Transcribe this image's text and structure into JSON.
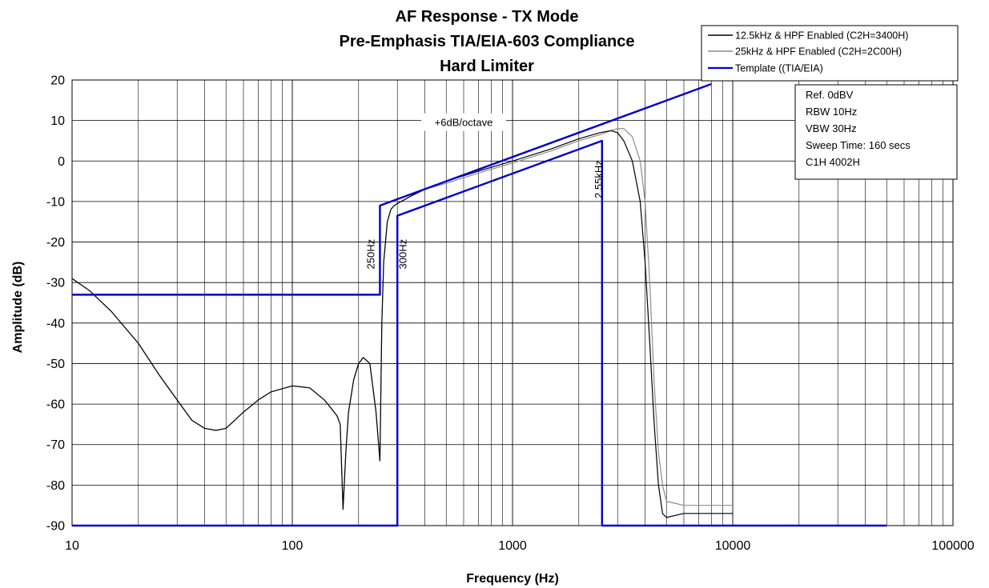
{
  "chart_data": {
    "type": "line",
    "title_lines": [
      "AF Response - TX Mode",
      "Pre-Emphasis TIA/EIA-603 Compliance",
      "Hard Limiter"
    ],
    "xlabel": "Frequency (Hz)",
    "ylabel": "Amplitude (dB)",
    "xscale": "log",
    "xlim": [
      10,
      100000
    ],
    "ylim": [
      -90,
      20
    ],
    "x_ticks": [
      10,
      100,
      1000,
      10000,
      100000
    ],
    "x_tick_labels": [
      "10",
      "100",
      "1000",
      "10000",
      "100000"
    ],
    "y_ticks": [
      20,
      10,
      0,
      -10,
      -20,
      -30,
      -40,
      -50,
      -60,
      -70,
      -80,
      -90
    ],
    "y_tick_labels": [
      "20",
      "10",
      "0",
      "-10",
      "-20",
      "-30",
      "-40",
      "-50",
      "-60",
      "-70",
      "-80",
      "-90"
    ],
    "grid": true,
    "legend_position": "top-right",
    "series": [
      {
        "name": "12.5kHz & HPF Enabled (C2H=3400H)",
        "color": "#000000",
        "x": [
          10,
          12,
          15,
          20,
          25,
          30,
          35,
          40,
          45,
          50,
          60,
          70,
          80,
          100,
          120,
          140,
          155,
          160,
          165,
          170,
          175,
          180,
          190,
          200,
          210,
          225,
          240,
          250,
          255,
          260,
          270,
          280,
          290,
          300,
          350,
          400,
          500,
          700,
          1000,
          1500,
          2000,
          2500,
          2800,
          3000,
          3200,
          3500,
          3800,
          4000,
          4200,
          4400,
          4600,
          4800,
          5000,
          6000,
          7000,
          8000,
          9000,
          10000
        ],
        "y": [
          -29,
          -32,
          -37,
          -45,
          -53,
          -59,
          -64,
          -66,
          -66.5,
          -66,
          -62,
          -59,
          -57,
          -55.5,
          -56,
          -59,
          -62,
          -63,
          -65,
          -86,
          -72,
          -62,
          -54,
          -50,
          -48.5,
          -50,
          -62,
          -74,
          -40,
          -25,
          -15,
          -12,
          -11,
          -10.5,
          -8.5,
          -7,
          -5,
          -2.5,
          0,
          3,
          5.5,
          7,
          7.5,
          7,
          5,
          0,
          -10,
          -25,
          -45,
          -65,
          -80,
          -87,
          -88,
          -87,
          -87,
          -87,
          -87,
          -87
        ]
      },
      {
        "name": "25kHz & HPF Enabled (C2H=2C00H)",
        "color": "#8c8c8c",
        "x": [
          10,
          12,
          15,
          20,
          25,
          30,
          35,
          40,
          45,
          50,
          60,
          70,
          80,
          100,
          120,
          140,
          155,
          160,
          165,
          170,
          175,
          180,
          190,
          200,
          210,
          225,
          240,
          250,
          255,
          260,
          270,
          280,
          290,
          300,
          350,
          400,
          500,
          700,
          1000,
          1500,
          2000,
          2500,
          2800,
          3000,
          3200,
          3500,
          3800,
          4000,
          4200,
          4400,
          4600,
          4800,
          5000,
          6000,
          7000,
          8000,
          9000,
          10000
        ],
        "y": [
          -29,
          -32,
          -37,
          -45,
          -53,
          -59,
          -64,
          -66,
          -66.5,
          -66,
          -62,
          -59,
          -57,
          -55.5,
          -56,
          -59,
          -62,
          -63,
          -65,
          -86,
          -72,
          -62,
          -54,
          -50,
          -48.5,
          -50,
          -62,
          -74,
          -40,
          -25,
          -15,
          -12,
          -11,
          -10.5,
          -8.5,
          -7,
          -5.5,
          -3,
          -0.5,
          2.5,
          5,
          6.5,
          7.5,
          8,
          8,
          6,
          0,
          -10,
          -30,
          -55,
          -72,
          -80,
          -84,
          -85,
          -85,
          -85,
          -85,
          -85
        ]
      },
      {
        "name": "Template ((TIA/EIA)",
        "color": "#0000cc",
        "x": [
          10,
          250,
          250,
          8000
        ],
        "y": [
          -33,
          -33,
          -11,
          19
        ]
      }
    ],
    "template_lower": {
      "color": "#0000cc",
      "x": [
        10,
        300,
        300,
        2550,
        2550,
        50000
      ],
      "y": [
        -90,
        -90,
        -13.5,
        5,
        -90,
        -90
      ]
    },
    "annotations": [
      {
        "text": "+6dB/octave",
        "x": 600,
        "y": 8.6,
        "rotate": 0
      },
      {
        "text": "250Hz",
        "x": 236,
        "y": -23,
        "rotate": -90
      },
      {
        "text": "300Hz",
        "x": 330,
        "y": -23,
        "rotate": -90
      },
      {
        "text": "2.55kHz",
        "x": 2550,
        "y": -4.5,
        "rotate": -90
      }
    ],
    "info_box": {
      "lines": [
        "Ref. 0dBV",
        "RBW 10Hz",
        "VBW 30Hz",
        "Sweep Time: 160 secs",
        "C1H 4002H"
      ]
    }
  }
}
